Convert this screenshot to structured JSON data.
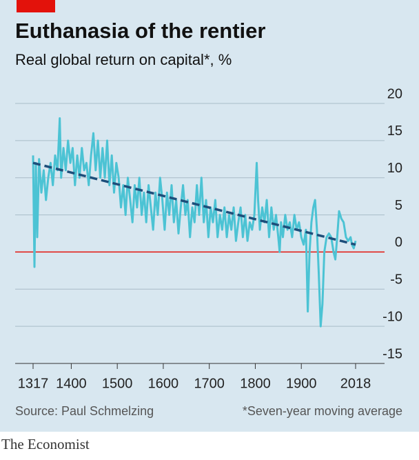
{
  "chart_data": {
    "type": "line",
    "title": "Euthanasia of the rentier",
    "subtitle": "Real global return on capital*, %",
    "source": "Source: Paul Schmelzing",
    "note": "*Seven-year moving average",
    "x": [
      1317,
      1320,
      1323,
      1326,
      1330,
      1335,
      1340,
      1345,
      1350,
      1355,
      1360,
      1365,
      1370,
      1375,
      1378,
      1383,
      1388,
      1393,
      1398,
      1403,
      1408,
      1413,
      1418,
      1423,
      1428,
      1433,
      1438,
      1443,
      1448,
      1453,
      1458,
      1463,
      1468,
      1473,
      1478,
      1483,
      1488,
      1493,
      1498,
      1503,
      1508,
      1513,
      1518,
      1523,
      1528,
      1533,
      1538,
      1543,
      1548,
      1553,
      1558,
      1563,
      1568,
      1573,
      1578,
      1583,
      1588,
      1593,
      1598,
      1603,
      1608,
      1613,
      1618,
      1623,
      1628,
      1633,
      1638,
      1643,
      1648,
      1653,
      1658,
      1663,
      1668,
      1673,
      1678,
      1683,
      1688,
      1693,
      1698,
      1703,
      1708,
      1713,
      1718,
      1723,
      1728,
      1733,
      1738,
      1743,
      1748,
      1753,
      1758,
      1763,
      1768,
      1773,
      1778,
      1783,
      1788,
      1793,
      1798,
      1803,
      1806,
      1810,
      1815,
      1820,
      1825,
      1830,
      1835,
      1840,
      1845,
      1850,
      1853,
      1856,
      1860,
      1865,
      1870,
      1875,
      1880,
      1885,
      1890,
      1895,
      1900,
      1905,
      1910,
      1914,
      1918,
      1922,
      1926,
      1930,
      1934,
      1938,
      1942,
      1946,
      1950,
      1955,
      1960,
      1965,
      1970,
      1974,
      1978,
      1982,
      1987,
      1992,
      1997,
      2002,
      2007,
      2010,
      2014,
      2018
    ],
    "series": [
      {
        "color": "#4cc3d4",
        "values": [
          13,
          -2,
          12,
          2,
          12.5,
          8,
          11,
          7,
          10,
          12,
          9,
          13,
          11,
          18,
          10,
          14,
          11,
          15,
          12,
          14,
          9,
          13,
          10,
          14,
          11,
          12,
          9,
          13,
          16,
          11,
          15,
          10,
          14,
          10,
          15,
          9,
          13,
          8,
          12,
          10,
          6,
          9,
          5,
          10,
          7,
          4,
          9,
          6,
          10,
          5,
          8,
          4,
          9,
          6,
          3,
          8,
          5,
          10,
          7,
          3,
          8,
          5,
          9,
          4,
          7,
          2.5,
          6,
          9,
          5,
          7,
          2,
          6,
          4,
          9,
          5,
          10,
          4,
          7,
          2,
          6,
          4,
          7,
          2,
          5,
          3,
          6,
          2,
          5,
          3,
          6,
          1.5,
          4,
          6,
          2,
          5,
          1.5,
          4,
          3,
          5,
          12,
          7,
          3,
          6,
          4,
          7,
          2,
          6,
          3,
          5,
          2,
          0,
          4,
          2,
          5,
          3,
          4,
          2,
          5,
          3,
          4,
          2,
          1,
          3,
          -8,
          0,
          4,
          6,
          7,
          3,
          -3,
          -10,
          -7,
          0,
          2,
          2.5,
          2,
          0,
          -1,
          2,
          5.5,
          4.5,
          4,
          2,
          1.5,
          2,
          1,
          0.5,
          1.5
        ]
      }
    ],
    "trend": {
      "x": [
        1317,
        2018
      ],
      "values": [
        12,
        1
      ],
      "color": "#1d4e7a"
    },
    "xlim": [
      1317,
      2018
    ],
    "xticks": [
      1317,
      1400,
      1500,
      1600,
      1700,
      1800,
      1900,
      2018
    ],
    "ylim": [
      -15,
      20
    ],
    "yticks": [
      20,
      15,
      10,
      5,
      0,
      -5,
      -10,
      -15
    ],
    "grid": true,
    "zero_line_color": "#e3120b"
  },
  "brand": "The Economist"
}
